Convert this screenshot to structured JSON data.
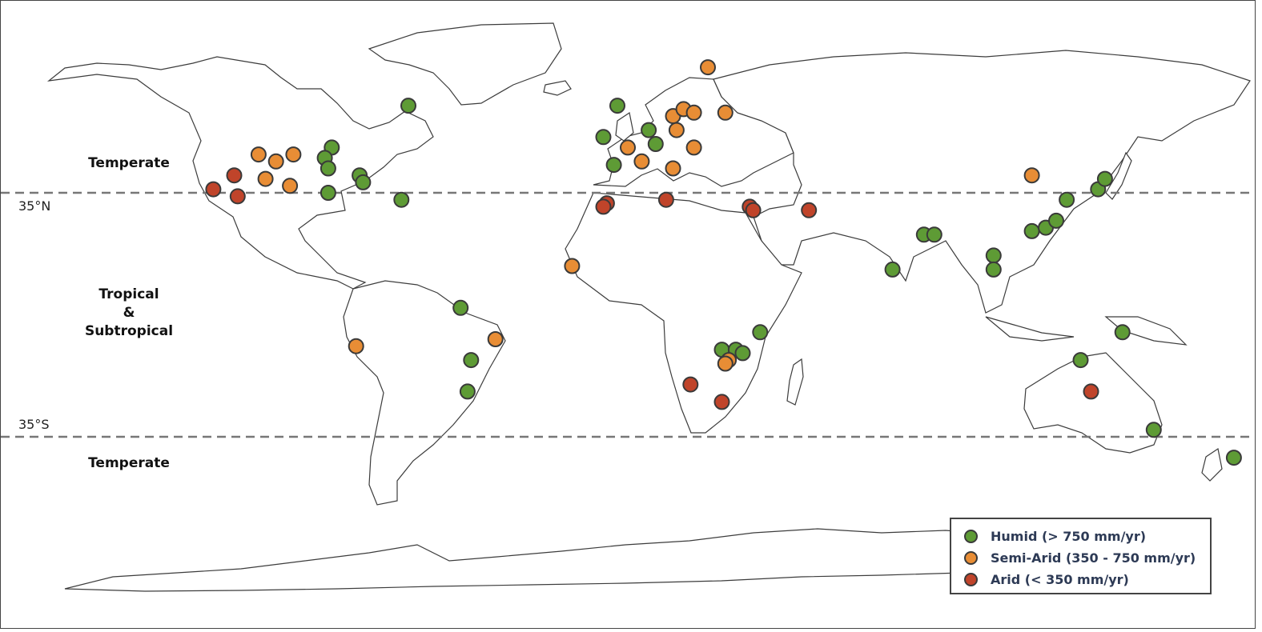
{
  "zones": {
    "north_temperate": "Temperate",
    "tropical_line1": "Tropical",
    "tropical_line2": "&",
    "tropical_line3": "Subtropical",
    "south_temperate": "Temperate"
  },
  "latitude_lines": {
    "north": "35°N",
    "south": "35°S"
  },
  "legend": {
    "items": [
      {
        "key": "humid",
        "label": "Humid (> 750 mm/yr)",
        "color": "#5e9b35"
      },
      {
        "key": "semi_arid",
        "label": "Semi-Arid (350 - 750 mm/yr)",
        "color": "#e88d35"
      },
      {
        "key": "arid",
        "label": "Arid (< 350 mm/yr)",
        "color": "#c0442a"
      }
    ]
  },
  "sites": [
    {
      "lon": -63,
      "lat": 60,
      "class": "humid"
    },
    {
      "lon": -96,
      "lat": 46,
      "class": "semi_arid"
    },
    {
      "lon": -113,
      "lat": 40,
      "class": "arid"
    },
    {
      "lon": -106,
      "lat": 46,
      "class": "semi_arid"
    },
    {
      "lon": -101,
      "lat": 44,
      "class": "semi_arid"
    },
    {
      "lon": -85,
      "lat": 48,
      "class": "humid"
    },
    {
      "lon": -87,
      "lat": 45,
      "class": "humid"
    },
    {
      "lon": -86,
      "lat": 42,
      "class": "humid"
    },
    {
      "lon": -119,
      "lat": 36,
      "class": "arid"
    },
    {
      "lon": -112,
      "lat": 34,
      "class": "arid"
    },
    {
      "lon": -104,
      "lat": 39,
      "class": "semi_arid"
    },
    {
      "lon": -97,
      "lat": 37,
      "class": "semi_arid"
    },
    {
      "lon": -86,
      "lat": 35,
      "class": "humid"
    },
    {
      "lon": -77,
      "lat": 40,
      "class": "humid"
    },
    {
      "lon": -76,
      "lat": 38,
      "class": "humid"
    },
    {
      "lon": -65,
      "lat": 33,
      "class": "humid"
    },
    {
      "lon": -3,
      "lat": 60,
      "class": "humid"
    },
    {
      "lon": 6,
      "lat": 53,
      "class": "humid"
    },
    {
      "lon": -7,
      "lat": 51,
      "class": "humid"
    },
    {
      "lon": 0,
      "lat": 48,
      "class": "semi_arid"
    },
    {
      "lon": 8,
      "lat": 49,
      "class": "humid"
    },
    {
      "lon": 4,
      "lat": 44,
      "class": "semi_arid"
    },
    {
      "lon": -4,
      "lat": 43,
      "class": "humid"
    },
    {
      "lon": 13,
      "lat": 42,
      "class": "semi_arid"
    },
    {
      "lon": 13,
      "lat": 57,
      "class": "semi_arid"
    },
    {
      "lon": 14,
      "lat": 53,
      "class": "semi_arid"
    },
    {
      "lon": 16,
      "lat": 59,
      "class": "semi_arid"
    },
    {
      "lon": 19,
      "lat": 58,
      "class": "semi_arid"
    },
    {
      "lon": 23,
      "lat": 71,
      "class": "semi_arid"
    },
    {
      "lon": 28,
      "lat": 58,
      "class": "semi_arid"
    },
    {
      "lon": 19,
      "lat": 48,
      "class": "semi_arid"
    },
    {
      "lon": -6,
      "lat": 32,
      "class": "arid"
    },
    {
      "lon": -7,
      "lat": 31,
      "class": "arid"
    },
    {
      "lon": 11,
      "lat": 33,
      "class": "arid"
    },
    {
      "lon": 35,
      "lat": 31,
      "class": "arid"
    },
    {
      "lon": 36,
      "lat": 30,
      "class": "arid"
    },
    {
      "lon": 52,
      "lat": 30,
      "class": "arid"
    },
    {
      "lon": -16,
      "lat": 14,
      "class": "semi_arid"
    },
    {
      "lon": -48,
      "lat": 2,
      "class": "humid"
    },
    {
      "lon": -78,
      "lat": -9,
      "class": "semi_arid"
    },
    {
      "lon": -38,
      "lat": -7,
      "class": "semi_arid"
    },
    {
      "lon": -45,
      "lat": -13,
      "class": "humid"
    },
    {
      "lon": -46,
      "lat": -22,
      "class": "humid"
    },
    {
      "lon": 38,
      "lat": -5,
      "class": "humid"
    },
    {
      "lon": 27,
      "lat": -10,
      "class": "humid"
    },
    {
      "lon": 31,
      "lat": -10,
      "class": "humid"
    },
    {
      "lon": 33,
      "lat": -11,
      "class": "humid"
    },
    {
      "lon": 29,
      "lat": -13,
      "class": "semi_arid"
    },
    {
      "lon": 28,
      "lat": -14,
      "class": "semi_arid"
    },
    {
      "lon": 18,
      "lat": -20,
      "class": "arid"
    },
    {
      "lon": 27,
      "lat": -25,
      "class": "arid"
    },
    {
      "lon": 76,
      "lat": 13,
      "class": "humid"
    },
    {
      "lon": 85,
      "lat": 23,
      "class": "humid"
    },
    {
      "lon": 88,
      "lat": 23,
      "class": "humid"
    },
    {
      "lon": 105,
      "lat": 17,
      "class": "humid"
    },
    {
      "lon": 105,
      "lat": 13,
      "class": "humid"
    },
    {
      "lon": 116,
      "lat": 40,
      "class": "semi_arid"
    },
    {
      "lon": 116,
      "lat": 24,
      "class": "humid"
    },
    {
      "lon": 120,
      "lat": 25,
      "class": "humid"
    },
    {
      "lon": 123,
      "lat": 27,
      "class": "humid"
    },
    {
      "lon": 126,
      "lat": 33,
      "class": "humid"
    },
    {
      "lon": 135,
      "lat": 36,
      "class": "humid"
    },
    {
      "lon": 137,
      "lat": 39,
      "class": "humid"
    },
    {
      "lon": 142,
      "lat": -5,
      "class": "humid"
    },
    {
      "lon": 130,
      "lat": -13,
      "class": "humid"
    },
    {
      "lon": 133,
      "lat": -22,
      "class": "arid"
    },
    {
      "lon": 151,
      "lat": -33,
      "class": "humid"
    },
    {
      "lon": 174,
      "lat": -41,
      "class": "humid"
    }
  ]
}
